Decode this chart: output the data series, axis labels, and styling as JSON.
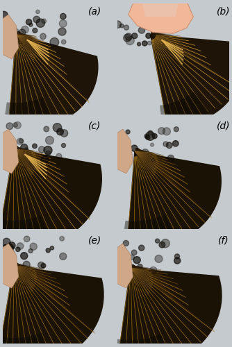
{
  "background_color": "#c5cace",
  "labels": [
    "(a)",
    "(b)",
    "(c)",
    "(d)",
    "(e)",
    "(f)"
  ],
  "label_fontsize": 10,
  "figsize": [
    3.34,
    5.0
  ],
  "dpi": 100
}
